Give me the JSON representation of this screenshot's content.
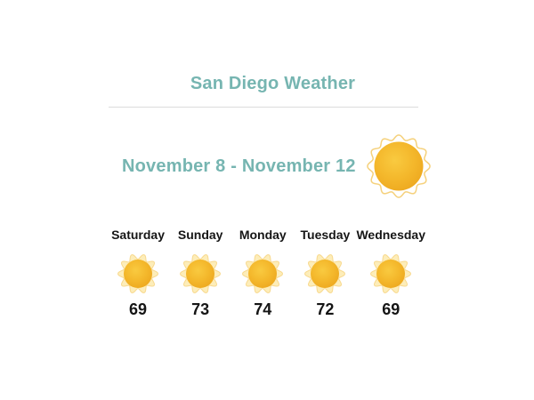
{
  "title": "San Diego Weather",
  "date_range": "November 8 - November 12",
  "forecast_icon": "sun-icon",
  "days": [
    {
      "label": "Saturday",
      "temp": "69",
      "icon": "sun-icon"
    },
    {
      "label": "Sunday",
      "temp": "73",
      "icon": "sun-icon"
    },
    {
      "label": "Monday",
      "temp": "74",
      "icon": "sun-icon"
    },
    {
      "label": "Tuesday",
      "temp": "72",
      "icon": "sun-icon"
    },
    {
      "label": "Wednesday",
      "temp": "69",
      "icon": "sun-icon"
    }
  ],
  "colors": {
    "accent_teal": "#76b5b1",
    "text_dark": "#151515",
    "divider_gray": "#dcdcdc",
    "sun_core": "#f4b82c",
    "sun_core_light": "#f9ca40",
    "sun_core_dark": "#eda81f",
    "sun_halo_stroke": "#f5d17c",
    "sun_ray_fill": "#fdedb9",
    "sun_ray_stroke": "#f8d98e"
  }
}
